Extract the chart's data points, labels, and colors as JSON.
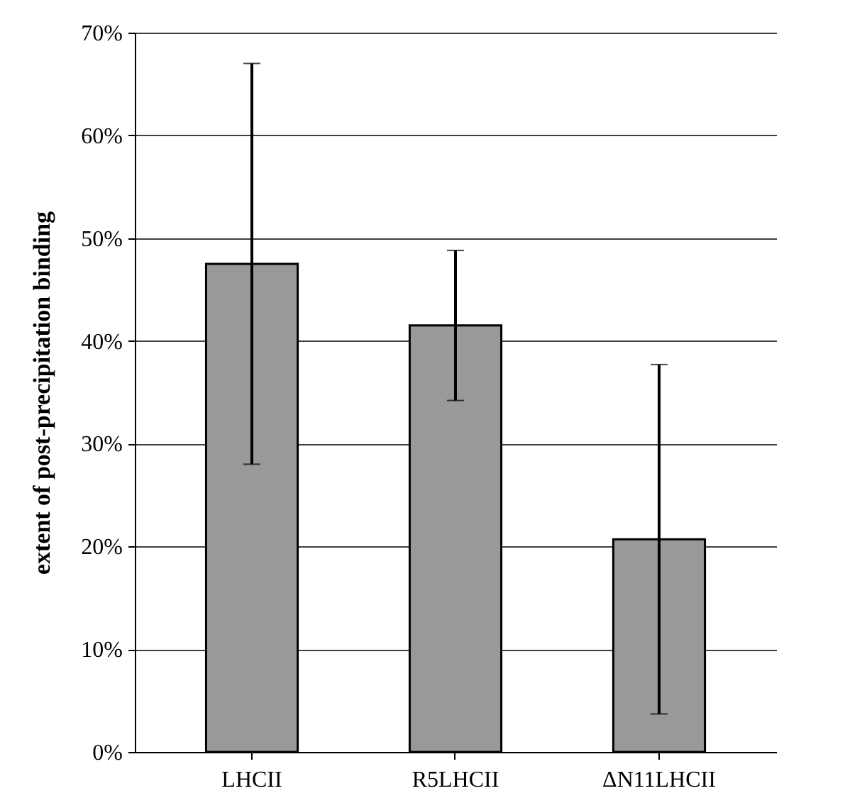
{
  "chart_data": {
    "type": "bar",
    "ylabel": "extent of post-precipitation binding",
    "categories": [
      "LHCII",
      "R5LHCII",
      "ΔN11LHCII"
    ],
    "values": [
      47.5,
      41.5,
      20.7
    ],
    "errors": [
      19.5,
      7.3,
      17
    ],
    "color": "#999999",
    "ylim": [
      0,
      70
    ],
    "yticks": [
      {
        "value": 0,
        "label": "0%"
      },
      {
        "value": 10,
        "label": "10%"
      },
      {
        "value": 20,
        "label": "20%"
      },
      {
        "value": 30,
        "label": "30%"
      },
      {
        "value": 40,
        "label": "40%"
      },
      {
        "value": 50,
        "label": "50%"
      },
      {
        "value": 60,
        "label": "60%"
      },
      {
        "value": 70,
        "label": "70%"
      }
    ],
    "grid": "y"
  }
}
